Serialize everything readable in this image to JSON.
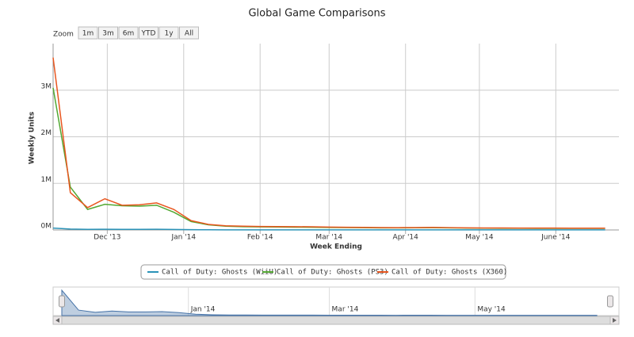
{
  "chart_data": {
    "type": "line",
    "title": "Global Game Comparisons",
    "range_selector": {
      "label": "Zoom",
      "buttons": [
        "1m",
        "3m",
        "6m",
        "YTD",
        "1y",
        "All"
      ]
    },
    "y_label": "Weekly Units",
    "x_label": "Week Ending",
    "x": [
      0,
      1,
      2,
      3,
      4,
      5,
      6,
      7,
      8,
      9,
      10,
      11,
      12,
      13,
      14,
      15,
      16,
      17,
      18,
      19,
      20,
      21,
      22,
      23,
      24,
      25,
      26,
      27,
      28,
      29,
      30,
      31,
      32
    ],
    "xlim": [
      0,
      32.8
    ],
    "xticks": [
      {
        "value": 3.14,
        "label": "Dec '13"
      },
      {
        "value": 7.57,
        "label": "Jan '14"
      },
      {
        "value": 12,
        "label": "Feb '14"
      },
      {
        "value": 16,
        "label": "Mar '14"
      },
      {
        "value": 20.43,
        "label": "Apr '14"
      },
      {
        "value": 24.71,
        "label": "May '14"
      },
      {
        "value": 29.14,
        "label": "June '14"
      }
    ],
    "ylim": [
      0,
      4000000
    ],
    "yticks": [
      {
        "value": 0,
        "label": "0M"
      },
      {
        "value": 1000000,
        "label": "1M"
      },
      {
        "value": 2000000,
        "label": "2M"
      },
      {
        "value": 3000000,
        "label": "3M"
      }
    ],
    "grid": true,
    "series": [
      {
        "name": "Call of Duty: Ghosts (WiiU)",
        "color": "#2a93b8",
        "values": [
          40000,
          20000,
          12000,
          15000,
          13000,
          12000,
          14000,
          10000,
          6000,
          4000,
          3000,
          3000,
          3000,
          2500,
          2500,
          2500,
          2500,
          2000,
          2000,
          2000,
          2000,
          2000,
          2000,
          2000,
          2000,
          2000,
          2000,
          2000,
          2000,
          2000,
          2000,
          2000,
          2000
        ]
      },
      {
        "name": "Call of Duty: Ghosts (PS3)",
        "color": "#52a832",
        "values": [
          3050000,
          920000,
          440000,
          550000,
          520000,
          510000,
          530000,
          380000,
          180000,
          110000,
          80000,
          70000,
          66000,
          63000,
          60000,
          58000,
          54000,
          50000,
          48000,
          45000,
          44000,
          46000,
          48000,
          44000,
          40000,
          38000,
          37000,
          36000,
          35000,
          35000,
          34000,
          33000,
          33000
        ]
      },
      {
        "name": "Call of Duty: Ghosts (X360)",
        "color": "#e8561f",
        "values": [
          3700000,
          800000,
          480000,
          670000,
          530000,
          540000,
          580000,
          440000,
          200000,
          120000,
          90000,
          80000,
          75000,
          72000,
          70000,
          68000,
          62000,
          57000,
          55000,
          52000,
          50000,
          52000,
          55000,
          50000,
          45000,
          43000,
          42000,
          41000,
          40000,
          40000,
          39000,
          38000,
          38000
        ]
      }
    ],
    "navigator_xticks": [
      {
        "value": 7.57,
        "label": "Jan '14"
      },
      {
        "value": 16,
        "label": "Mar '14"
      },
      {
        "value": 24.71,
        "label": "May '14"
      }
    ]
  }
}
